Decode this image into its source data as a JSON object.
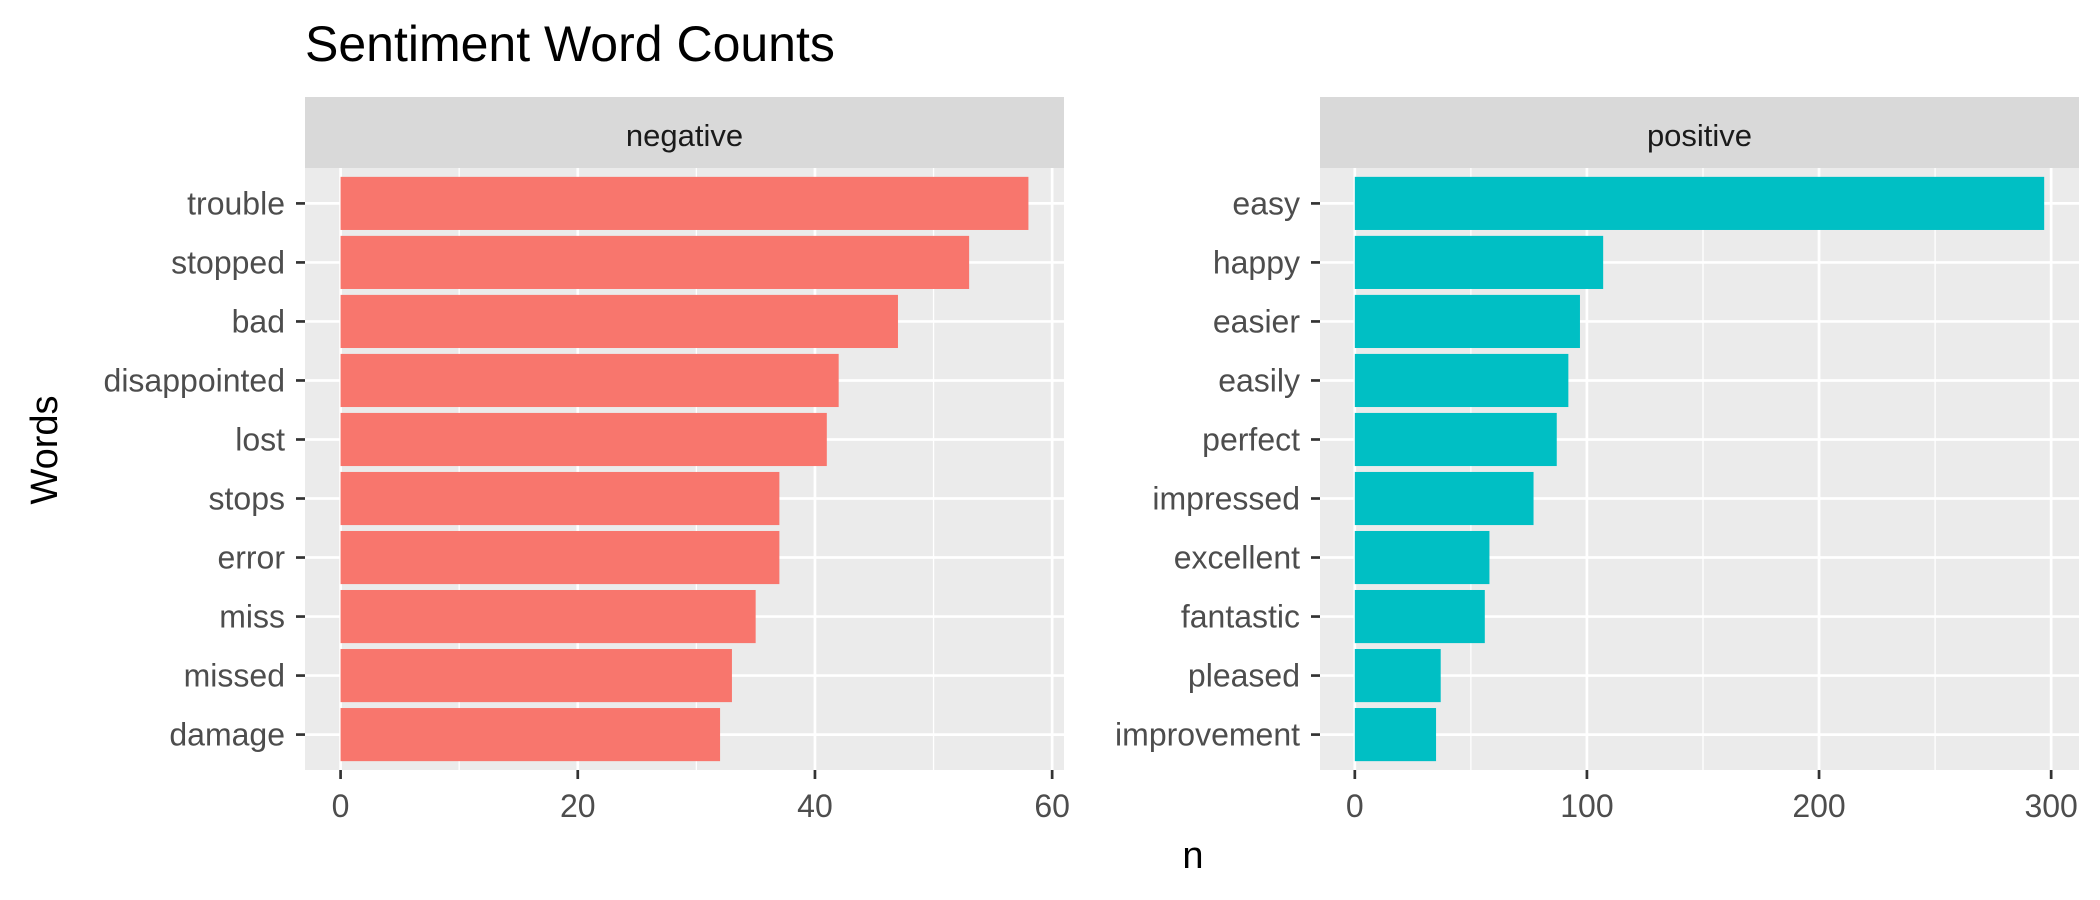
{
  "chart_data": {
    "type": "bar",
    "orientation": "horizontal",
    "title": "Sentiment Word Counts",
    "xlabel": "n",
    "ylabel": "Words",
    "grid": true,
    "legend": "none",
    "panels": [
      {
        "name": "negative",
        "color": "#F8766D",
        "categories": [
          "trouble",
          "stopped",
          "bad",
          "disappointed",
          "lost",
          "stops",
          "error",
          "miss",
          "missed",
          "damage"
        ],
        "values": [
          58,
          53,
          47,
          42,
          41,
          37,
          37,
          35,
          33,
          32
        ],
        "xlim": [
          -3,
          61
        ],
        "ticks": [
          0,
          20,
          40,
          60
        ]
      },
      {
        "name": "positive",
        "color": "#00BFC4",
        "categories": [
          "easy",
          "happy",
          "easier",
          "easily",
          "perfect",
          "impressed",
          "excellent",
          "fantastic",
          "pleased",
          "improvement"
        ],
        "values": [
          297,
          107,
          97,
          92,
          87,
          77,
          58,
          56,
          37,
          35
        ],
        "xlim": [
          -15,
          312
        ],
        "ticks": [
          0,
          100,
          200,
          300
        ]
      }
    ]
  }
}
